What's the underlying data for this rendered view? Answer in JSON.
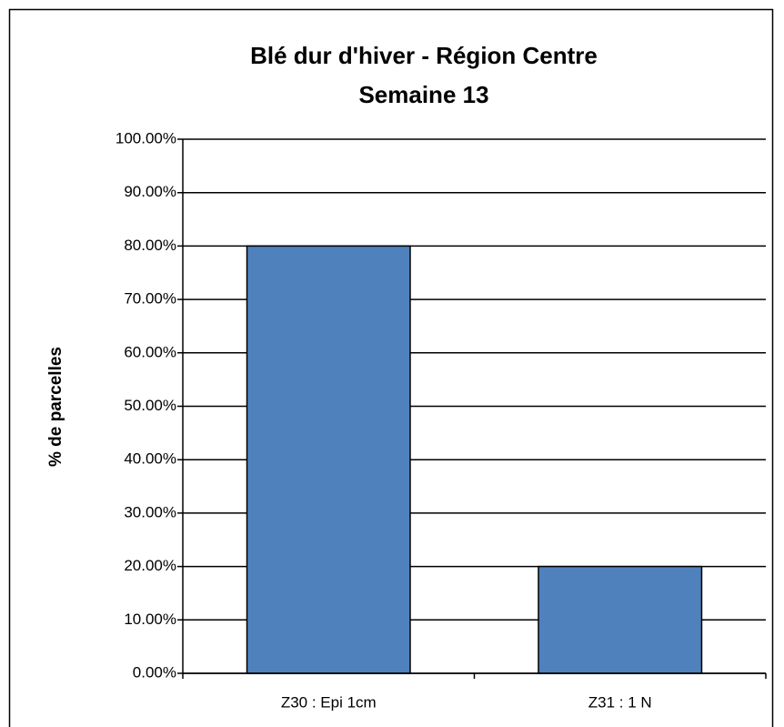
{
  "chart_data": {
    "type": "bar",
    "title": [
      "Blé dur d'hiver - Région Centre",
      "Semaine 13"
    ],
    "y_label": "% de parcelles",
    "categories": [
      "Z30 : Epi 1cm",
      "Z31 : 1 N"
    ],
    "values": [
      80,
      20
    ],
    "color": "#4f81bd",
    "ylim": [
      0,
      100
    ],
    "yticks": [
      {
        "value": 0,
        "label": "0.00%"
      },
      {
        "value": 10,
        "label": "10.00%"
      },
      {
        "value": 20,
        "label": "20.00%"
      },
      {
        "value": 30,
        "label": "30.00%"
      },
      {
        "value": 40,
        "label": "40.00%"
      },
      {
        "value": 50,
        "label": "50.00%"
      },
      {
        "value": 60,
        "label": "60.00%"
      },
      {
        "value": 70,
        "label": "70.00%"
      },
      {
        "value": 80,
        "label": "80.00%"
      },
      {
        "value": 90,
        "label": "90.00%"
      },
      {
        "value": 100,
        "label": "100.00%"
      }
    ],
    "grid": true
  }
}
